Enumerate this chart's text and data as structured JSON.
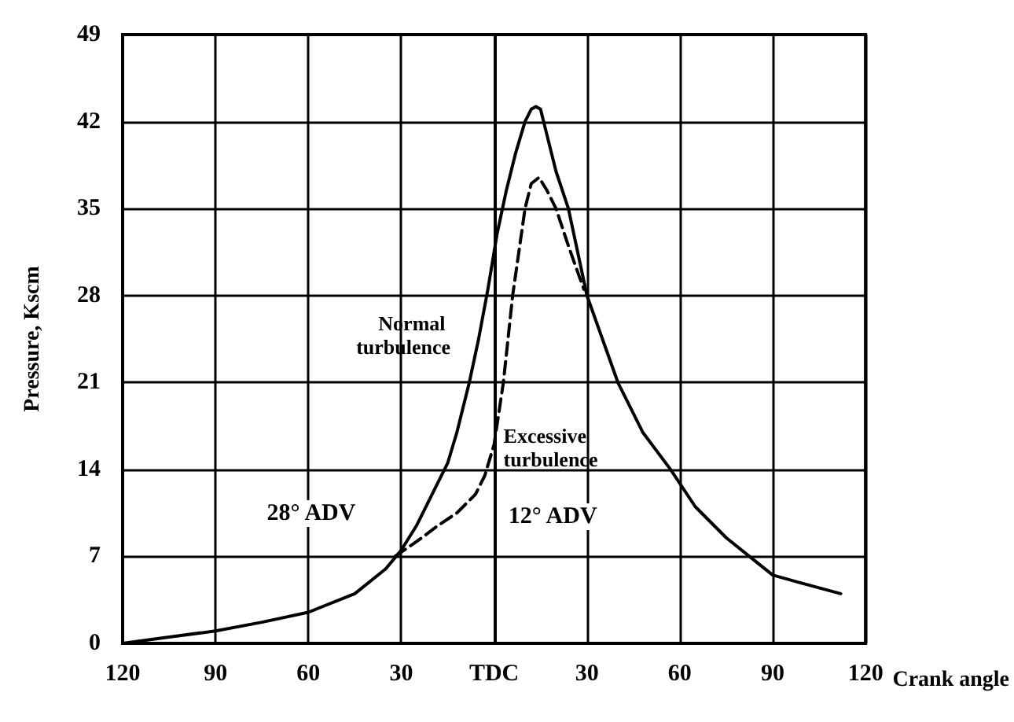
{
  "chart_data": {
    "type": "line",
    "xlabel": "Crank angle",
    "ylabel": "Pressure, Kscm",
    "xlim": [
      -120,
      120
    ],
    "xticks": [
      {
        "value": -120,
        "label": "120"
      },
      {
        "value": -90,
        "label": "90"
      },
      {
        "value": -60,
        "label": "60"
      },
      {
        "value": -30,
        "label": "30"
      },
      {
        "value": 0,
        "label": "TDC"
      },
      {
        "value": 30,
        "label": "30"
      },
      {
        "value": 60,
        "label": "60"
      },
      {
        "value": 90,
        "label": "90"
      },
      {
        "value": 120,
        "label": "120"
      }
    ],
    "ylim": [
      0,
      49
    ],
    "yticks": [
      0,
      7,
      14,
      21,
      28,
      35,
      42,
      49
    ],
    "grid": true,
    "marker": "none",
    "legend": false,
    "series": [
      {
        "name": "Normal turbulence",
        "color": "#000000",
        "line_style": "solid",
        "x": [
          -120,
          -105,
          -90,
          -75,
          -60,
          -45,
          -35,
          -30,
          -25,
          -20,
          -15,
          -12,
          -8,
          -5,
          -2,
          1,
          4,
          7,
          10,
          12,
          13.5,
          15,
          17,
          20,
          24,
          30,
          35,
          40,
          48,
          57,
          65,
          75,
          85,
          90,
          100,
          112
        ],
        "values": [
          0,
          0.5,
          1,
          1.7,
          2.5,
          4,
          6,
          7.5,
          9.5,
          12,
          14.5,
          17,
          21,
          24.5,
          28.5,
          33,
          36.5,
          39.5,
          42,
          43,
          43.2,
          43,
          41,
          38,
          35,
          28,
          24.5,
          21,
          17,
          14,
          11,
          8.5,
          6.5,
          5.5,
          4.8,
          4
        ]
      },
      {
        "name": "Excessive turbulence",
        "color": "#000000",
        "line_style": "dashed",
        "x": [
          -32,
          -25,
          -18,
          -12,
          -6,
          -3,
          0,
          3,
          6,
          8,
          10,
          12,
          14.5,
          17,
          20,
          24,
          29
        ],
        "values": [
          7,
          8.2,
          9.5,
          10.5,
          12,
          13.5,
          16,
          21,
          28,
          31.5,
          35,
          37,
          37.5,
          36.5,
          35,
          32,
          28.5
        ]
      }
    ],
    "annotations": [
      "28° ADV",
      "12° ADV"
    ]
  }
}
